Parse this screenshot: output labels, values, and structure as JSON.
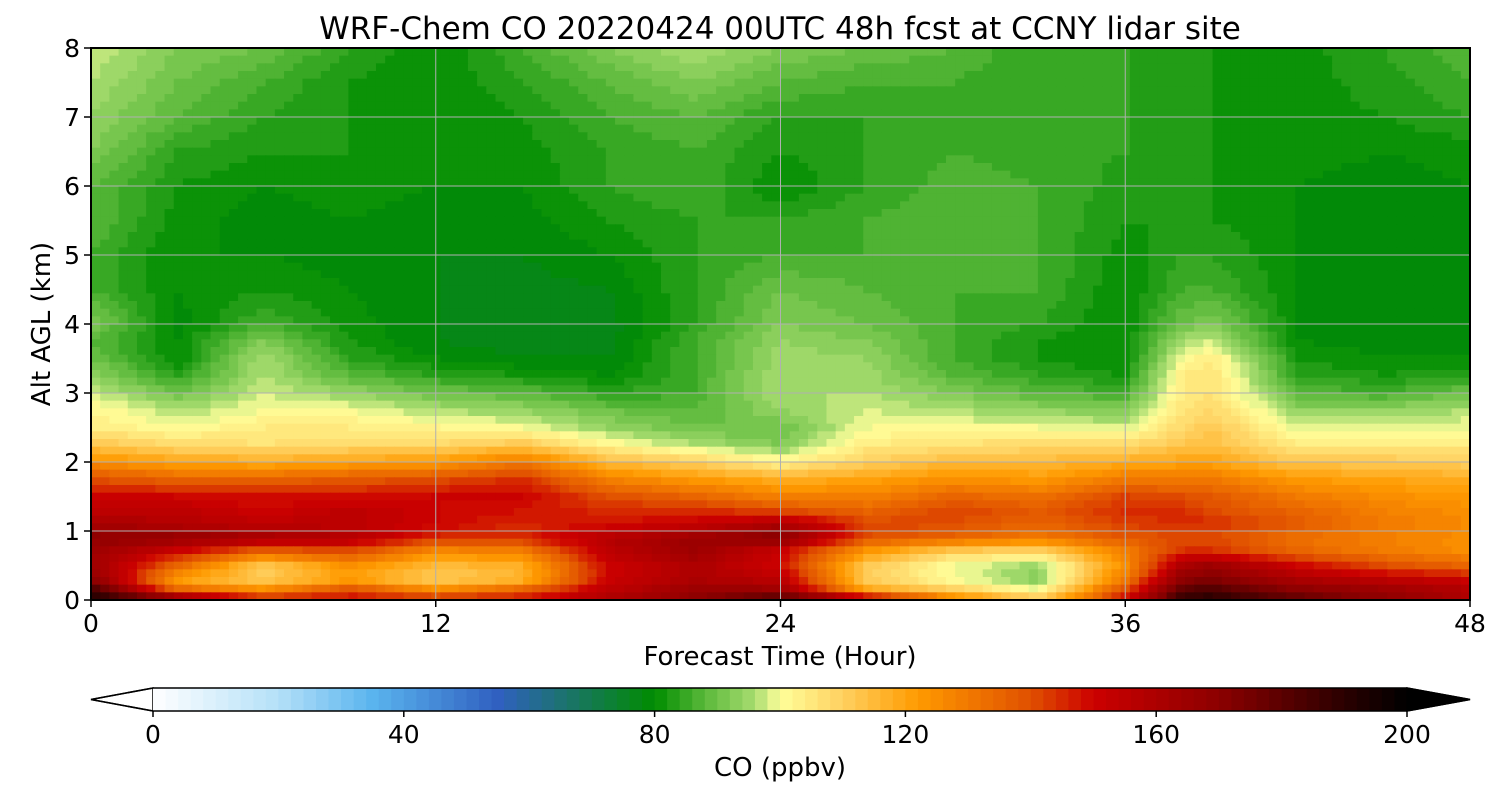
{
  "chart_data": {
    "type": "heatmap",
    "title": "WRF-Chem CO  20220424 00UTC 48h fcst at CCNY lidar site",
    "xlabel": "Forecast Time (Hour)",
    "ylabel": "Alt AGL (km)",
    "xlim": [
      0,
      48
    ],
    "ylim": [
      0,
      8
    ],
    "xticks": [
      0,
      12,
      24,
      36,
      48
    ],
    "yticks": [
      0,
      1,
      2,
      3,
      4,
      5,
      6,
      7,
      8
    ],
    "grid": true,
    "colorbar": {
      "label": "CO  (ppbv)",
      "min": 0,
      "max": 200,
      "ticks": [
        0,
        40,
        80,
        120,
        160,
        200
      ],
      "extend": "both",
      "levels": 100,
      "stops": [
        {
          "value": 0,
          "color": "#ffffff"
        },
        {
          "value": 20,
          "color": "#b4e0f8"
        },
        {
          "value": 35,
          "color": "#5ab4ee"
        },
        {
          "value": 55,
          "color": "#3060c0"
        },
        {
          "value": 80,
          "color": "#008c00"
        },
        {
          "value": 88,
          "color": "#5ab83a"
        },
        {
          "value": 96,
          "color": "#a8dc70"
        },
        {
          "value": 100,
          "color": "#ffff9a"
        },
        {
          "value": 110,
          "color": "#ffd060"
        },
        {
          "value": 122,
          "color": "#ff9a00"
        },
        {
          "value": 140,
          "color": "#e05000"
        },
        {
          "value": 150,
          "color": "#cc0000"
        },
        {
          "value": 170,
          "color": "#8c0000"
        },
        {
          "value": 190,
          "color": "#2a0000"
        },
        {
          "value": 200,
          "color": "#000000"
        }
      ]
    },
    "altitudes_km": [
      0,
      0.15,
      0.3,
      0.5,
      0.7,
      0.9,
      1.1,
      1.3,
      1.5,
      1.75,
      2.0,
      2.25,
      2.5,
      2.75,
      3.0,
      3.25,
      3.5,
      3.75,
      4.0,
      4.5,
      5.0,
      5.5,
      6.0,
      6.5,
      7.0,
      7.5,
      8.0
    ],
    "forecast_hours": [
      0,
      3,
      6,
      9,
      12,
      15,
      18,
      21,
      24,
      27,
      30,
      33,
      36,
      38,
      39,
      42,
      45,
      48
    ],
    "values_ppbv": [
      [
        195,
        175,
        150,
        150,
        148,
        150,
        160,
        170,
        185,
        160,
        130,
        112,
        150,
        190,
        192,
        180,
        170,
        160
      ],
      [
        185,
        135,
        125,
        140,
        125,
        135,
        155,
        165,
        165,
        120,
        110,
        100,
        140,
        180,
        182,
        170,
        165,
        158
      ],
      [
        170,
        120,
        110,
        120,
        110,
        115,
        150,
        160,
        155,
        110,
        100,
        92,
        130,
        170,
        172,
        160,
        155,
        150
      ],
      [
        165,
        135,
        112,
        125,
        115,
        118,
        150,
        160,
        150,
        112,
        100,
        95,
        125,
        160,
        165,
        150,
        140,
        135
      ],
      [
        165,
        150,
        135,
        140,
        125,
        128,
        155,
        165,
        150,
        122,
        110,
        108,
        128,
        145,
        145,
        135,
        130,
        125
      ],
      [
        170,
        168,
        162,
        158,
        145,
        145,
        158,
        165,
        172,
        140,
        135,
        130,
        138,
        140,
        140,
        132,
        128,
        125
      ],
      [
        162,
        158,
        155,
        155,
        150,
        145,
        148,
        152,
        160,
        142,
        140,
        135,
        142,
        145,
        145,
        138,
        130,
        126
      ],
      [
        155,
        155,
        150,
        155,
        150,
        148,
        145,
        145,
        140,
        135,
        142,
        138,
        145,
        145,
        140,
        135,
        128,
        125
      ],
      [
        150,
        150,
        148,
        148,
        150,
        150,
        140,
        135,
        128,
        128,
        135,
        132,
        142,
        140,
        138,
        130,
        125,
        122
      ],
      [
        140,
        135,
        135,
        138,
        140,
        145,
        128,
        122,
        118,
        120,
        125,
        122,
        130,
        130,
        130,
        122,
        120,
        118
      ],
      [
        125,
        120,
        118,
        120,
        122,
        130,
        115,
        110,
        102,
        110,
        115,
        115,
        118,
        120,
        120,
        112,
        112,
        110
      ],
      [
        112,
        108,
        106,
        108,
        108,
        112,
        102,
        96,
        92,
        104,
        106,
        108,
        108,
        112,
        114,
        104,
        104,
        104
      ],
      [
        104,
        100,
        104,
        104,
        102,
        100,
        94,
        90,
        90,
        100,
        100,
        100,
        98,
        108,
        112,
        98,
        98,
        100
      ],
      [
        102,
        96,
        100,
        100,
        96,
        94,
        90,
        88,
        94,
        98,
        96,
        94,
        92,
        106,
        108,
        94,
        94,
        96
      ],
      [
        98,
        90,
        98,
        94,
        90,
        88,
        84,
        86,
        96,
        96,
        92,
        88,
        86,
        104,
        106,
        88,
        86,
        90
      ],
      [
        94,
        84,
        96,
        88,
        84,
        82,
        80,
        86,
        96,
        95,
        88,
        84,
        82,
        104,
        106,
        84,
        82,
        84
      ],
      [
        90,
        80,
        96,
        84,
        80,
        78,
        78,
        86,
        95,
        94,
        86,
        82,
        80,
        100,
        104,
        82,
        80,
        80
      ],
      [
        88,
        80,
        92,
        82,
        78,
        77,
        77,
        86,
        94,
        92,
        86,
        82,
        80,
        96,
        98,
        80,
        79,
        79
      ],
      [
        92,
        79,
        86,
        81,
        78,
        77,
        77,
        84,
        92,
        90,
        86,
        84,
        80,
        90,
        92,
        80,
        79,
        79
      ],
      [
        86,
        80,
        82,
        80,
        78,
        77,
        78,
        84,
        90,
        88,
        86,
        86,
        80,
        86,
        86,
        80,
        79,
        79
      ],
      [
        86,
        80,
        80,
        79,
        78,
        78,
        80,
        84,
        86,
        86,
        88,
        86,
        81,
        84,
        84,
        80,
        79,
        79
      ],
      [
        88,
        81,
        79,
        80,
        79,
        79,
        82,
        84,
        84,
        86,
        88,
        86,
        82,
        82,
        82,
        80,
        79,
        79
      ],
      [
        88,
        82,
        80,
        81,
        80,
        80,
        84,
        86,
        80,
        84,
        87,
        86,
        83,
        82,
        82,
        80,
        79,
        80
      ],
      [
        92,
        84,
        82,
        82,
        80,
        81,
        84,
        86,
        82,
        84,
        86,
        85,
        84,
        82,
        82,
        81,
        80,
        81
      ],
      [
        94,
        88,
        84,
        82,
        80,
        82,
        86,
        88,
        84,
        84,
        86,
        85,
        84,
        82,
        82,
        81,
        82,
        84
      ],
      [
        96,
        90,
        86,
        82,
        80,
        84,
        88,
        92,
        88,
        86,
        86,
        84,
        84,
        82,
        82,
        81,
        83,
        86
      ],
      [
        98,
        92,
        90,
        84,
        80,
        86,
        92,
        96,
        92,
        90,
        88,
        84,
        84,
        82,
        82,
        81,
        84,
        88
      ]
    ]
  }
}
